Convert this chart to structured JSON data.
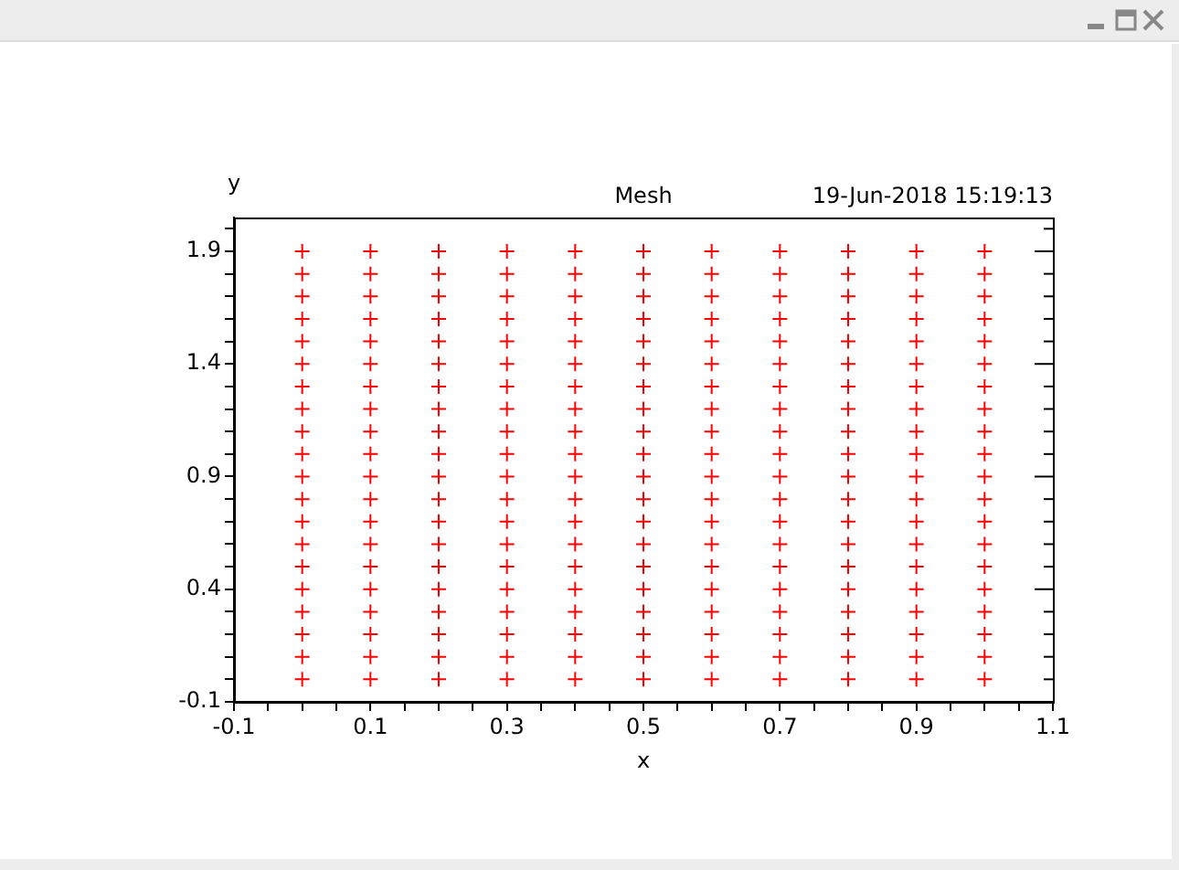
{
  "chart_data": {
    "type": "scatter",
    "title": "Mesh",
    "xlabel": "x",
    "ylabel": "y",
    "annotations": [
      "19-Jun-2018 15:19:13"
    ],
    "marker": "cross",
    "grid": false,
    "legend": false,
    "xlim": [
      -0.1,
      1.1
    ],
    "ylim": [
      -0.1,
      2.05
    ],
    "xticks": [
      -0.1,
      {
        "value": -0.05,
        "label": null
      },
      {
        "value": 0,
        "label": null
      },
      {
        "value": 0.05,
        "label": null
      },
      0.1,
      {
        "value": 0.15,
        "label": null
      },
      {
        "value": 0.2,
        "label": null
      },
      {
        "value": 0.25,
        "label": null
      },
      0.3,
      {
        "value": 0.35,
        "label": null
      },
      {
        "value": 0.4,
        "label": null
      },
      {
        "value": 0.45,
        "label": null
      },
      0.5,
      {
        "value": 0.55,
        "label": null
      },
      {
        "value": 0.6,
        "label": null
      },
      {
        "value": 0.65,
        "label": null
      },
      0.7,
      {
        "value": 0.75,
        "label": null
      },
      {
        "value": 0.8,
        "label": null
      },
      {
        "value": 0.85,
        "label": null
      },
      0.9,
      {
        "value": 0.95,
        "label": null
      },
      {
        "value": 1,
        "label": null
      },
      {
        "value": 1.05,
        "label": null
      },
      1.1
    ],
    "yticks": [
      -0.1,
      {
        "value": 0,
        "label": null
      },
      {
        "value": 0.1,
        "label": null
      },
      {
        "value": 0.2,
        "label": null
      },
      {
        "value": 0.3,
        "label": null
      },
      0.4,
      {
        "value": 0.5,
        "label": null
      },
      {
        "value": 0.6,
        "label": null
      },
      {
        "value": 0.7,
        "label": null
      },
      {
        "value": 0.8,
        "label": null
      },
      0.9,
      {
        "value": 1,
        "label": null
      },
      {
        "value": 1.1,
        "label": null
      },
      {
        "value": 1.2,
        "label": null
      },
      {
        "value": 1.3,
        "label": null
      },
      1.4,
      {
        "value": 1.5,
        "label": null
      },
      {
        "value": 1.6,
        "label": null
      },
      {
        "value": 1.7,
        "label": null
      },
      {
        "value": 1.8,
        "label": null
      },
      1.9,
      {
        "value": 2,
        "label": null
      }
    ],
    "series": [
      {
        "color": "#ff0000",
        "x": [
          0,
          0,
          0,
          0,
          0,
          0,
          0,
          0,
          0,
          0,
          0,
          0,
          0,
          0,
          0,
          0,
          0,
          0,
          0,
          0,
          0.1,
          0.1,
          0.1,
          0.1,
          0.1,
          0.1,
          0.1,
          0.1,
          0.1,
          0.1,
          0.1,
          0.1,
          0.1,
          0.1,
          0.1,
          0.1,
          0.1,
          0.1,
          0.1,
          0.1,
          0.2,
          0.2,
          0.2,
          0.2,
          0.2,
          0.2,
          0.2,
          0.2,
          0.2,
          0.2,
          0.2,
          0.2,
          0.2,
          0.2,
          0.2,
          0.2,
          0.2,
          0.2,
          0.2,
          0.2,
          0.3,
          0.3,
          0.3,
          0.3,
          0.3,
          0.3,
          0.3,
          0.3,
          0.3,
          0.3,
          0.3,
          0.3,
          0.3,
          0.3,
          0.3,
          0.3,
          0.3,
          0.3,
          0.3,
          0.3,
          0.4,
          0.4,
          0.4,
          0.4,
          0.4,
          0.4,
          0.4,
          0.4,
          0.4,
          0.4,
          0.4,
          0.4,
          0.4,
          0.4,
          0.4,
          0.4,
          0.4,
          0.4,
          0.4,
          0.4,
          0.5,
          0.5,
          0.5,
          0.5,
          0.5,
          0.5,
          0.5,
          0.5,
          0.5,
          0.5,
          0.5,
          0.5,
          0.5,
          0.5,
          0.5,
          0.5,
          0.5,
          0.5,
          0.5,
          0.5,
          0.6,
          0.6,
          0.6,
          0.6,
          0.6,
          0.6,
          0.6,
          0.6,
          0.6,
          0.6,
          0.6,
          0.6,
          0.6,
          0.6,
          0.6,
          0.6,
          0.6,
          0.6,
          0.6,
          0.6,
          0.7,
          0.7,
          0.7,
          0.7,
          0.7,
          0.7,
          0.7,
          0.7,
          0.7,
          0.7,
          0.7,
          0.7,
          0.7,
          0.7,
          0.7,
          0.7,
          0.7,
          0.7,
          0.7,
          0.7,
          0.8,
          0.8,
          0.8,
          0.8,
          0.8,
          0.8,
          0.8,
          0.8,
          0.8,
          0.8,
          0.8,
          0.8,
          0.8,
          0.8,
          0.8,
          0.8,
          0.8,
          0.8,
          0.8,
          0.8,
          0.9,
          0.9,
          0.9,
          0.9,
          0.9,
          0.9,
          0.9,
          0.9,
          0.9,
          0.9,
          0.9,
          0.9,
          0.9,
          0.9,
          0.9,
          0.9,
          0.9,
          0.9,
          0.9,
          0.9,
          1,
          1,
          1,
          1,
          1,
          1,
          1,
          1,
          1,
          1,
          1,
          1,
          1,
          1,
          1,
          1,
          1,
          1,
          1,
          1
        ],
        "values": [
          0,
          0.1,
          0.2,
          0.3,
          0.4,
          0.5,
          0.6,
          0.7,
          0.8,
          0.9,
          1,
          1.1,
          1.2,
          1.3,
          1.4,
          1.5,
          1.6,
          1.7,
          1.8,
          1.9,
          0,
          0.1,
          0.2,
          0.3,
          0.4,
          0.5,
          0.6,
          0.7,
          0.8,
          0.9,
          1,
          1.1,
          1.2,
          1.3,
          1.4,
          1.5,
          1.6,
          1.7,
          1.8,
          1.9,
          0,
          0.1,
          0.2,
          0.3,
          0.4,
          0.5,
          0.6,
          0.7,
          0.8,
          0.9,
          1,
          1.1,
          1.2,
          1.3,
          1.4,
          1.5,
          1.6,
          1.7,
          1.8,
          1.9,
          0,
          0.1,
          0.2,
          0.3,
          0.4,
          0.5,
          0.6,
          0.7,
          0.8,
          0.9,
          1,
          1.1,
          1.2,
          1.3,
          1.4,
          1.5,
          1.6,
          1.7,
          1.8,
          1.9,
          0,
          0.1,
          0.2,
          0.3,
          0.4,
          0.5,
          0.6,
          0.7,
          0.8,
          0.9,
          1,
          1.1,
          1.2,
          1.3,
          1.4,
          1.5,
          1.6,
          1.7,
          1.8,
          1.9,
          0,
          0.1,
          0.2,
          0.3,
          0.4,
          0.5,
          0.6,
          0.7,
          0.8,
          0.9,
          1,
          1.1,
          1.2,
          1.3,
          1.4,
          1.5,
          1.6,
          1.7,
          1.8,
          1.9,
          0,
          0.1,
          0.2,
          0.3,
          0.4,
          0.5,
          0.6,
          0.7,
          0.8,
          0.9,
          1,
          1.1,
          1.2,
          1.3,
          1.4,
          1.5,
          1.6,
          1.7,
          1.8,
          1.9,
          0,
          0.1,
          0.2,
          0.3,
          0.4,
          0.5,
          0.6,
          0.7,
          0.8,
          0.9,
          1,
          1.1,
          1.2,
          1.3,
          1.4,
          1.5,
          1.6,
          1.7,
          1.8,
          1.9,
          0,
          0.1,
          0.2,
          0.3,
          0.4,
          0.5,
          0.6,
          0.7,
          0.8,
          0.9,
          1,
          1.1,
          1.2,
          1.3,
          1.4,
          1.5,
          1.6,
          1.7,
          1.8,
          1.9,
          0,
          0.1,
          0.2,
          0.3,
          0.4,
          0.5,
          0.6,
          0.7,
          0.8,
          0.9,
          1,
          1.1,
          1.2,
          1.3,
          1.4,
          1.5,
          1.6,
          1.7,
          1.8,
          1.9,
          0,
          0.1,
          0.2,
          0.3,
          0.4,
          0.5,
          0.6,
          0.7,
          0.8,
          0.9,
          1,
          1.1,
          1.2,
          1.3,
          1.4,
          1.5,
          1.6,
          1.7,
          1.8,
          1.9
        ]
      }
    ]
  }
}
